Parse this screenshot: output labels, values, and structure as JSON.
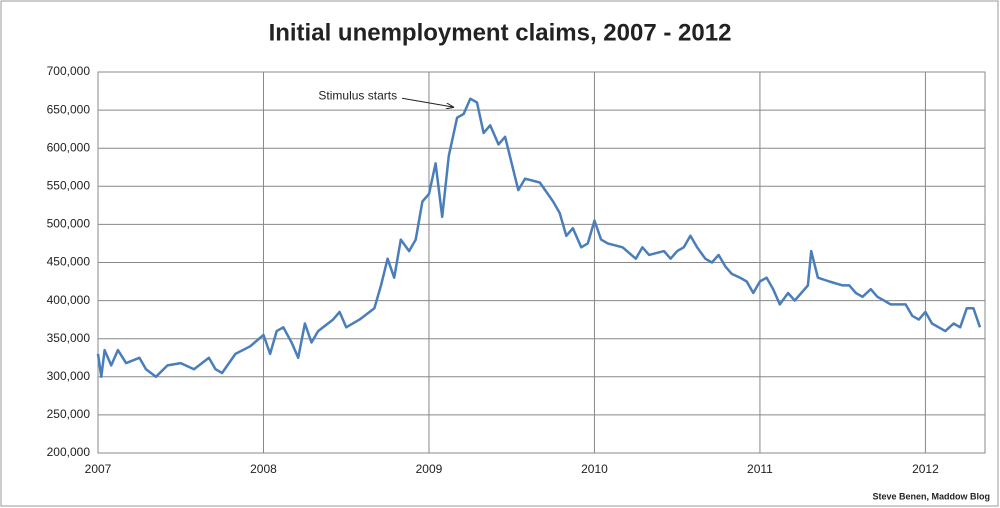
{
  "chart_data": {
    "type": "line",
    "title": "Initial unemployment claims, 2007 - 2012",
    "annotation": "Stimulus starts",
    "source": "Steve Benen, Maddow Blog",
    "x": [
      2007.0,
      2007.02,
      2007.04,
      2007.08,
      2007.12,
      2007.17,
      2007.25,
      2007.29,
      2007.35,
      2007.42,
      2007.5,
      2007.58,
      2007.67,
      2007.71,
      2007.75,
      2007.83,
      2007.92,
      2008.0,
      2008.04,
      2008.08,
      2008.12,
      2008.17,
      2008.21,
      2008.25,
      2008.29,
      2008.33,
      2008.42,
      2008.46,
      2008.5,
      2008.58,
      2008.67,
      2008.71,
      2008.75,
      2008.79,
      2008.83,
      2008.88,
      2008.92,
      2008.96,
      2009.0,
      2009.04,
      2009.08,
      2009.12,
      2009.17,
      2009.21,
      2009.25,
      2009.29,
      2009.33,
      2009.37,
      2009.42,
      2009.46,
      2009.5,
      2009.54,
      2009.58,
      2009.67,
      2009.75,
      2009.79,
      2009.83,
      2009.87,
      2009.92,
      2009.96,
      2010.0,
      2010.04,
      2010.08,
      2010.17,
      2010.25,
      2010.29,
      2010.33,
      2010.42,
      2010.46,
      2010.5,
      2010.54,
      2010.58,
      2010.62,
      2010.67,
      2010.71,
      2010.75,
      2010.79,
      2010.83,
      2010.88,
      2010.92,
      2010.96,
      2011.0,
      2011.04,
      2011.08,
      2011.12,
      2011.17,
      2011.21,
      2011.25,
      2011.29,
      2011.31,
      2011.35,
      2011.42,
      2011.5,
      2011.54,
      2011.58,
      2011.62,
      2011.67,
      2011.71,
      2011.75,
      2011.79,
      2011.83,
      2011.88,
      2011.92,
      2011.96,
      2012.0,
      2012.04,
      2012.08,
      2012.12,
      2012.17,
      2012.21,
      2012.25,
      2012.29,
      2012.33
    ],
    "series": [
      {
        "color": "#4a7ebb",
        "values": [
          330000,
          300000,
          335000,
          315000,
          335000,
          318000,
          325000,
          310000,
          300000,
          315000,
          318000,
          310000,
          325000,
          310000,
          305000,
          330000,
          340000,
          355000,
          330000,
          360000,
          365000,
          345000,
          325000,
          370000,
          345000,
          360000,
          375000,
          385000,
          365000,
          375000,
          390000,
          420000,
          455000,
          430000,
          480000,
          465000,
          480000,
          530000,
          540000,
          580000,
          510000,
          590000,
          640000,
          645000,
          665000,
          660000,
          620000,
          630000,
          605000,
          615000,
          580000,
          545000,
          560000,
          555000,
          530000,
          515000,
          485000,
          495000,
          470000,
          475000,
          505000,
          480000,
          475000,
          470000,
          455000,
          470000,
          460000,
          465000,
          455000,
          465000,
          470000,
          485000,
          470000,
          455000,
          450000,
          460000,
          445000,
          435000,
          430000,
          425000,
          410000,
          425000,
          430000,
          415000,
          395000,
          410000,
          400000,
          410000,
          420000,
          465000,
          430000,
          425000,
          420000,
          420000,
          410000,
          405000,
          415000,
          405000,
          400000,
          395000,
          395000,
          395000,
          380000,
          375000,
          385000,
          370000,
          365000,
          360000,
          370000,
          365000,
          390000,
          390000,
          365000
        ]
      }
    ],
    "xlim": [
      2007,
      2012.36
    ],
    "xticks": [
      2007,
      2008,
      2009,
      2010,
      2011,
      2012
    ],
    "ylim": [
      200000,
      700000
    ],
    "yticks": [
      {
        "value": 200000,
        "label": "200,000"
      },
      {
        "value": 250000,
        "label": "250,000"
      },
      {
        "value": 300000,
        "label": "300,000"
      },
      {
        "value": 350000,
        "label": "350,000"
      },
      {
        "value": 400000,
        "label": "400,000"
      },
      {
        "value": 450000,
        "label": "450,000"
      },
      {
        "value": 500000,
        "label": "500,000"
      },
      {
        "value": 550000,
        "label": "550,000"
      },
      {
        "value": 600000,
        "label": "600,000"
      },
      {
        "value": 650000,
        "label": "650,000"
      },
      {
        "value": 700000,
        "label": "700,000"
      }
    ],
    "grid": true
  }
}
